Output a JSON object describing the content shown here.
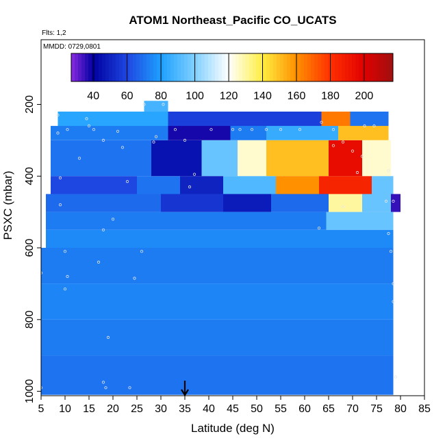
{
  "chart_data": {
    "type": "heatmap",
    "title": "ATOM1 Northeast_Pacific CO_UCATS",
    "flights_label": "Flts: 1,2",
    "date_label": "MMDD: 0729,0801",
    "xlabel": "Latitude (deg N)",
    "ylabel": "PSXC (mbar)",
    "xlim": [
      5,
      85
    ],
    "ylim": [
      1000,
      0
    ],
    "x_ticks": [
      "5",
      "10",
      "15",
      "20",
      "25",
      "30",
      "35",
      "40",
      "45",
      "50",
      "55",
      "60",
      "65",
      "70",
      "75",
      "80",
      "85"
    ],
    "y_ticks": [
      "200",
      "400",
      "600",
      "800",
      "1000"
    ],
    "colorbar": {
      "range": [
        27,
        217
      ],
      "ticks": [
        "40",
        "60",
        "80",
        "100",
        "120",
        "140",
        "160",
        "180",
        "200"
      ],
      "stops": [
        {
          "v": 27,
          "c": "#8a2be2"
        },
        {
          "v": 40,
          "c": "#0000a0"
        },
        {
          "v": 60,
          "c": "#1e46e0"
        },
        {
          "v": 80,
          "c": "#1ea0ff"
        },
        {
          "v": 100,
          "c": "#80d0ff"
        },
        {
          "v": 120,
          "c": "#ffffff"
        },
        {
          "v": 140,
          "c": "#ffee40"
        },
        {
          "v": 160,
          "c": "#ff9000"
        },
        {
          "v": 180,
          "c": "#ff3000"
        },
        {
          "v": 200,
          "c": "#e00000"
        },
        {
          "v": 217,
          "c": "#a01010"
        }
      ]
    },
    "arrow_latitude": 35,
    "regions": [
      {
        "lat": [
          26.5,
          31.5
        ],
        "p": [
          190,
          220
        ],
        "co": 88
      },
      {
        "lat": [
          8.5,
          31.5
        ],
        "p": [
          220,
          260
        ],
        "co": 82
      },
      {
        "lat": [
          31.5,
          63.5
        ],
        "p": [
          220,
          260
        ],
        "co": 58
      },
      {
        "lat": [
          63.5,
          69.5
        ],
        "p": [
          220,
          260
        ],
        "co": 165
      },
      {
        "lat": [
          69.5,
          77.5
        ],
        "p": [
          220,
          260
        ],
        "co": 70
      },
      {
        "lat": [
          7,
          31.5
        ],
        "p": [
          260,
          300
        ],
        "co": 72
      },
      {
        "lat": [
          31.5,
          44.5
        ],
        "p": [
          260,
          300
        ],
        "co": 38
      },
      {
        "lat": [
          44.5,
          52
        ],
        "p": [
          260,
          300
        ],
        "co": 72
      },
      {
        "lat": [
          52,
          67
        ],
        "p": [
          260,
          300
        ],
        "co": 85
      },
      {
        "lat": [
          67,
          77.5
        ],
        "p": [
          260,
          300
        ],
        "co": 150
      },
      {
        "lat": [
          7,
          28
        ],
        "p": [
          300,
          400
        ],
        "co": 70
      },
      {
        "lat": [
          28,
          38.5
        ],
        "p": [
          300,
          400
        ],
        "co": 45
      },
      {
        "lat": [
          38.5,
          46
        ],
        "p": [
          300,
          400
        ],
        "co": 95
      },
      {
        "lat": [
          46,
          52
        ],
        "p": [
          300,
          400
        ],
        "co": 125
      },
      {
        "lat": [
          52,
          65
        ],
        "p": [
          300,
          400
        ],
        "co": 150
      },
      {
        "lat": [
          65,
          72
        ],
        "p": [
          300,
          400
        ],
        "co": 195
      },
      {
        "lat": [
          72,
          78
        ],
        "p": [
          300,
          400
        ],
        "co": 125
      },
      {
        "lat": [
          7,
          25
        ],
        "p": [
          400,
          450
        ],
        "co": 60
      },
      {
        "lat": [
          25,
          34
        ],
        "p": [
          400,
          450
        ],
        "co": 70
      },
      {
        "lat": [
          34,
          43
        ],
        "p": [
          400,
          450
        ],
        "co": 50
      },
      {
        "lat": [
          43,
          54
        ],
        "p": [
          400,
          450
        ],
        "co": 90
      },
      {
        "lat": [
          54,
          63
        ],
        "p": [
          400,
          450
        ],
        "co": 160
      },
      {
        "lat": [
          63,
          74
        ],
        "p": [
          400,
          450
        ],
        "co": 185
      },
      {
        "lat": [
          74,
          78.5
        ],
        "p": [
          400,
          450
        ],
        "co": 95
      },
      {
        "lat": [
          6,
          30
        ],
        "p": [
          450,
          500
        ],
        "co": 68
      },
      {
        "lat": [
          30,
          43
        ],
        "p": [
          450,
          500
        ],
        "co": 55
      },
      {
        "lat": [
          43,
          53
        ],
        "p": [
          450,
          500
        ],
        "co": 48
      },
      {
        "lat": [
          53,
          65
        ],
        "p": [
          450,
          500
        ],
        "co": 68
      },
      {
        "lat": [
          65,
          72
        ],
        "p": [
          450,
          500
        ],
        "co": 130
      },
      {
        "lat": [
          72,
          78
        ],
        "p": [
          450,
          500
        ],
        "co": 95
      },
      {
        "lat": [
          78,
          80
        ],
        "p": [
          450,
          500
        ],
        "co": 35
      },
      {
        "lat": [
          6,
          64.5
        ],
        "p": [
          500,
          550
        ],
        "co": 72
      },
      {
        "lat": [
          64.5,
          78.5
        ],
        "p": [
          500,
          550
        ],
        "co": 95
      },
      {
        "lat": [
          6,
          78.5
        ],
        "p": [
          550,
          600
        ],
        "co": 75
      },
      {
        "lat": [
          5,
          78.5
        ],
        "p": [
          600,
          700
        ],
        "co": 72
      },
      {
        "lat": [
          5,
          78.5
        ],
        "p": [
          700,
          800
        ],
        "co": 74
      },
      {
        "lat": [
          5,
          78.5
        ],
        "p": [
          800,
          900
        ],
        "co": 72
      },
      {
        "lat": [
          5,
          78.5
        ],
        "p": [
          900,
          1010
        ],
        "co": 70
      }
    ],
    "points": [
      [
        8.5,
        230
      ],
      [
        8.5,
        280
      ],
      [
        10.5,
        270
      ],
      [
        14.5,
        240
      ],
      [
        15,
        260
      ],
      [
        13,
        350
      ],
      [
        9,
        405
      ],
      [
        9,
        480
      ],
      [
        10,
        610
      ],
      [
        10.5,
        680
      ],
      [
        10,
        715
      ],
      [
        5,
        670
      ],
      [
        16,
        270
      ],
      [
        18,
        300
      ],
      [
        21,
        275
      ],
      [
        22,
        320
      ],
      [
        23,
        415
      ],
      [
        20,
        520
      ],
      [
        18,
        550
      ],
      [
        17,
        640
      ],
      [
        19,
        850
      ],
      [
        18,
        975
      ],
      [
        18.5,
        990
      ],
      [
        23.5,
        990
      ],
      [
        5,
        990
      ],
      [
        26.5,
        200
      ],
      [
        30.5,
        200
      ],
      [
        28.5,
        305
      ],
      [
        26,
        610
      ],
      [
        29,
        290
      ],
      [
        24.5,
        685
      ],
      [
        33,
        270
      ],
      [
        35,
        300
      ],
      [
        37,
        395
      ],
      [
        40.5,
        270
      ],
      [
        36,
        430
      ],
      [
        45,
        270
      ],
      [
        46.5,
        270
      ],
      [
        49,
        270
      ],
      [
        52,
        270
      ],
      [
        55,
        270
      ],
      [
        59,
        270
      ],
      [
        63.5,
        250
      ],
      [
        66,
        270
      ],
      [
        72.5,
        260
      ],
      [
        74.5,
        260
      ],
      [
        68,
        305
      ],
      [
        66,
        315
      ],
      [
        70,
        330
      ],
      [
        72,
        345
      ],
      [
        71,
        390
      ],
      [
        77.5,
        385
      ],
      [
        77,
        470
      ],
      [
        78.5,
        470
      ],
      [
        68,
        485
      ],
      [
        63,
        545
      ],
      [
        77.5,
        560
      ],
      [
        78,
        610
      ],
      [
        78.5,
        700
      ],
      [
        78.5,
        750
      ],
      [
        79,
        960
      ]
    ]
  }
}
